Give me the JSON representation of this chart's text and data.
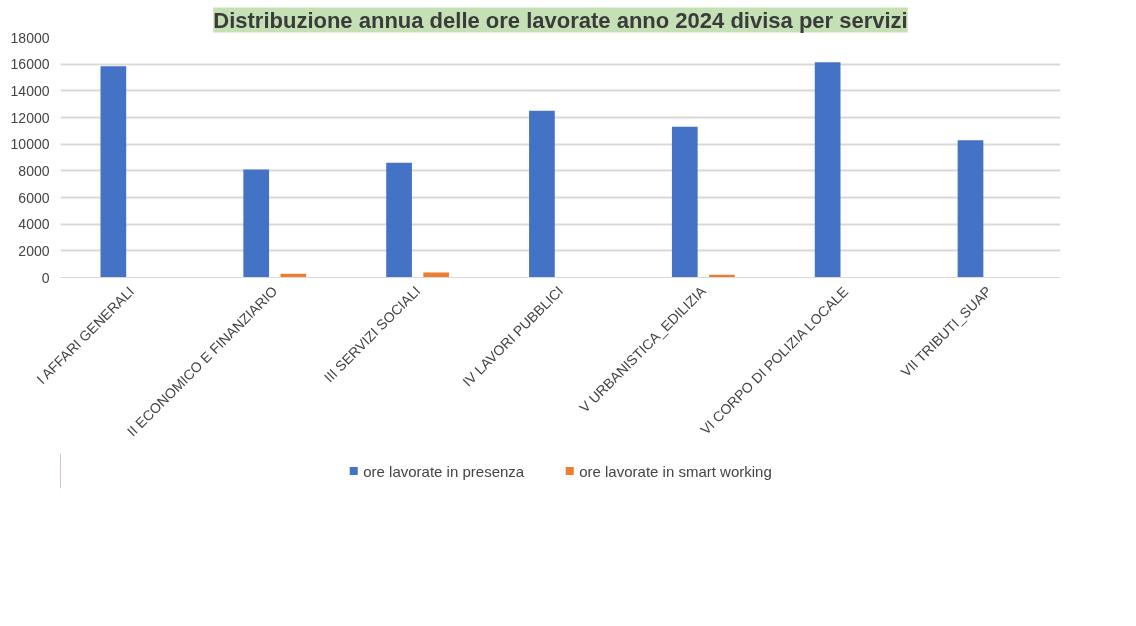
{
  "chart_data": {
    "type": "bar",
    "title": "Distribuzione annua delle ore lavorate anno 2024 divisa per servizi",
    "categories": [
      "I AFFARI GENERALI",
      "II ECONOMICO E FINANZIARIO",
      "III SERVIZI SOCIALI",
      "IV LAVORI PUBBLICI",
      "V URBANISTICA_EDILIZIA",
      "VI CORPO DI POLIZIA LOCALE",
      "VII TRIBUTI_SUAP"
    ],
    "series": [
      {
        "name": "ore lavorate in presenza",
        "color": "#4472c4",
        "values": [
          15850,
          8100,
          8600,
          12500,
          11300,
          16150,
          10300
        ]
      },
      {
        "name": "ore lavorate in smart working",
        "color": "#ed7d31",
        "values": [
          0,
          280,
          370,
          0,
          200,
          0,
          0
        ]
      }
    ],
    "ylim": [
      0,
      18000
    ],
    "yticks": [
      0,
      2000,
      4000,
      6000,
      8000,
      10000,
      12000,
      14000,
      16000,
      18000
    ],
    "grid": "y",
    "legend": "bottom"
  }
}
